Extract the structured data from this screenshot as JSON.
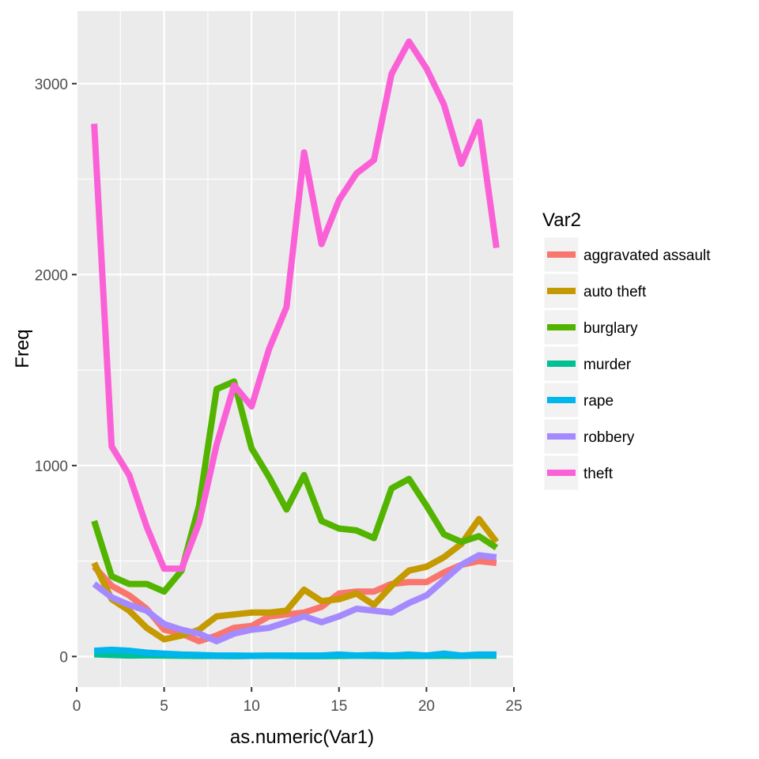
{
  "chart_data": {
    "type": "line",
    "xlabel": "as.numeric(Var1)",
    "ylabel": "Freq",
    "xlim": [
      0,
      25
    ],
    "ylim": [
      -160,
      3380
    ],
    "x_ticks": [
      0,
      5,
      10,
      15,
      20,
      25
    ],
    "y_ticks": [
      0,
      1000,
      2000,
      3000
    ],
    "grid": true,
    "legend": {
      "title": "Var2",
      "position": "right"
    },
    "x": [
      1,
      2,
      3,
      4,
      5,
      6,
      7,
      8,
      9,
      10,
      11,
      12,
      13,
      14,
      15,
      16,
      17,
      18,
      19,
      20,
      21,
      22,
      23,
      24
    ],
    "series": [
      {
        "name": "aggravated assault",
        "color": "#F8766D",
        "values": [
          470,
          370,
          320,
          250,
          140,
          120,
          80,
          110,
          150,
          160,
          210,
          220,
          230,
          260,
          330,
          340,
          340,
          380,
          390,
          390,
          440,
          480,
          500,
          490
        ]
      },
      {
        "name": "auto theft",
        "color": "#C49A00",
        "values": [
          490,
          300,
          240,
          150,
          90,
          110,
          140,
          210,
          220,
          230,
          230,
          240,
          350,
          290,
          300,
          330,
          270,
          370,
          450,
          470,
          520,
          590,
          720,
          600
        ]
      },
      {
        "name": "burglary",
        "color": "#53B400",
        "values": [
          710,
          420,
          380,
          380,
          340,
          450,
          790,
          1400,
          1440,
          1090,
          940,
          770,
          950,
          710,
          670,
          660,
          620,
          880,
          930,
          790,
          640,
          600,
          630,
          570
        ]
      },
      {
        "name": "murder",
        "color": "#00C094",
        "values": [
          12,
          8,
          5,
          6,
          5,
          4,
          3,
          3,
          2,
          3,
          4,
          3,
          2,
          2,
          3,
          4,
          3,
          2,
          3,
          3,
          4,
          3,
          5,
          4
        ]
      },
      {
        "name": "rape",
        "color": "#00B6EB",
        "values": [
          30,
          35,
          30,
          20,
          15,
          10,
          8,
          5,
          5,
          4,
          5,
          5,
          5,
          5,
          10,
          5,
          8,
          5,
          10,
          5,
          15,
          5,
          10,
          10
        ]
      },
      {
        "name": "robbery",
        "color": "#A58AFF",
        "values": [
          380,
          310,
          270,
          240,
          170,
          140,
          120,
          80,
          120,
          140,
          150,
          180,
          210,
          180,
          210,
          250,
          240,
          230,
          280,
          320,
          400,
          480,
          530,
          520
        ]
      },
      {
        "name": "theft",
        "color": "#FB61D7",
        "values": [
          2790,
          1100,
          950,
          680,
          460,
          460,
          700,
          1110,
          1420,
          1310,
          1610,
          1830,
          2640,
          2160,
          2390,
          2530,
          2600,
          3050,
          3220,
          3080,
          2890,
          2580,
          2800,
          2140
        ]
      }
    ]
  }
}
